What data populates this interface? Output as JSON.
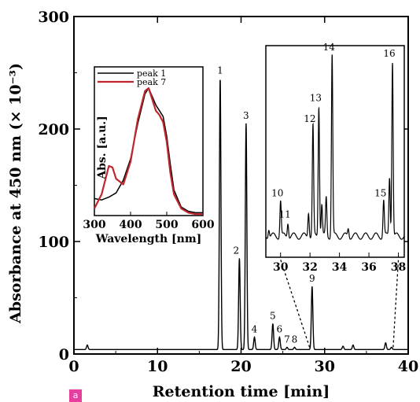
{
  "badge_text": "a",
  "chart_data": [
    {
      "type": "line",
      "title": "",
      "xlabel": "Retention time [min]",
      "ylabel": "Absorbance at 450 nm (× 10⁻³)",
      "xlim": [
        0,
        40
      ],
      "ylim": [
        0,
        300
      ],
      "x_ticks": [
        0,
        10,
        20,
        30,
        40
      ],
      "y_ticks": [
        0,
        100,
        200,
        300
      ],
      "baseline": 4,
      "peaks": [
        {
          "label": "1",
          "x": 17.5,
          "y": 245
        },
        {
          "label": "2",
          "x": 19.8,
          "y": 85
        },
        {
          "label": "3",
          "x": 20.6,
          "y": 205
        },
        {
          "label": "4",
          "x": 21.6,
          "y": 15
        },
        {
          "label": "5",
          "x": 23.8,
          "y": 27
        },
        {
          "label": "6",
          "x": 24.6,
          "y": 15
        },
        {
          "label": "7",
          "x": 25.5,
          "y": 6
        },
        {
          "label": "8",
          "x": 26.4,
          "y": 6
        },
        {
          "label": "9",
          "x": 28.5,
          "y": 60
        }
      ],
      "minor_peaks": [
        {
          "x": 1.6,
          "y": 8
        },
        {
          "x": 32.2,
          "y": 7
        },
        {
          "x": 33.4,
          "y": 8
        },
        {
          "x": 37.3,
          "y": 10
        },
        {
          "x": 38.0,
          "y": 6
        }
      ]
    },
    {
      "type": "line",
      "title": "",
      "xlabel": "Wavelength [nm]",
      "ylabel": "Abs. [a.u.]",
      "xlim": [
        300,
        600
      ],
      "ylim": [
        0,
        1.05
      ],
      "x_ticks": [
        300,
        400,
        500,
        600
      ],
      "legend_position": "top-left",
      "series": [
        {
          "name": "peak 1",
          "color": "#000000",
          "x": [
            300,
            320,
            340,
            360,
            380,
            400,
            420,
            440,
            450,
            460,
            470,
            480,
            490,
            500,
            510,
            520,
            540,
            560,
            580,
            600
          ],
          "y": [
            0.12,
            0.11,
            0.13,
            0.16,
            0.25,
            0.4,
            0.65,
            0.86,
            0.9,
            0.84,
            0.78,
            0.74,
            0.7,
            0.56,
            0.36,
            0.18,
            0.06,
            0.03,
            0.02,
            0.02
          ]
        },
        {
          "name": "peak 7",
          "color": "#c0262c",
          "x": [
            300,
            320,
            340,
            350,
            360,
            380,
            400,
            420,
            440,
            450,
            460,
            470,
            480,
            490,
            500,
            510,
            520,
            540,
            560,
            580,
            600
          ],
          "y": [
            0.05,
            0.15,
            0.35,
            0.34,
            0.26,
            0.22,
            0.38,
            0.68,
            0.88,
            0.9,
            0.82,
            0.74,
            0.71,
            0.66,
            0.52,
            0.3,
            0.15,
            0.05,
            0.02,
            0.01,
            0.01
          ]
        }
      ]
    },
    {
      "type": "line",
      "title": "",
      "xlabel": "",
      "ylabel": "",
      "xlim": [
        29,
        38.4
      ],
      "ylim": [
        0,
        1
      ],
      "x_ticks": [
        30,
        32,
        34,
        36,
        38
      ],
      "baseline": 0.1,
      "peaks": [
        {
          "label": "10",
          "x": 30.0,
          "y": 0.27
        },
        {
          "label": "11",
          "x": 30.5,
          "y": 0.17
        },
        {
          "label": "12",
          "x": 32.2,
          "y": 0.62
        },
        {
          "label": "13",
          "x": 32.6,
          "y": 0.72
        },
        {
          "label": "14",
          "x": 33.5,
          "y": 0.96
        },
        {
          "label": "15",
          "x": 37.0,
          "y": 0.27
        },
        {
          "label": "16",
          "x": 37.6,
          "y": 0.93
        }
      ]
    }
  ]
}
